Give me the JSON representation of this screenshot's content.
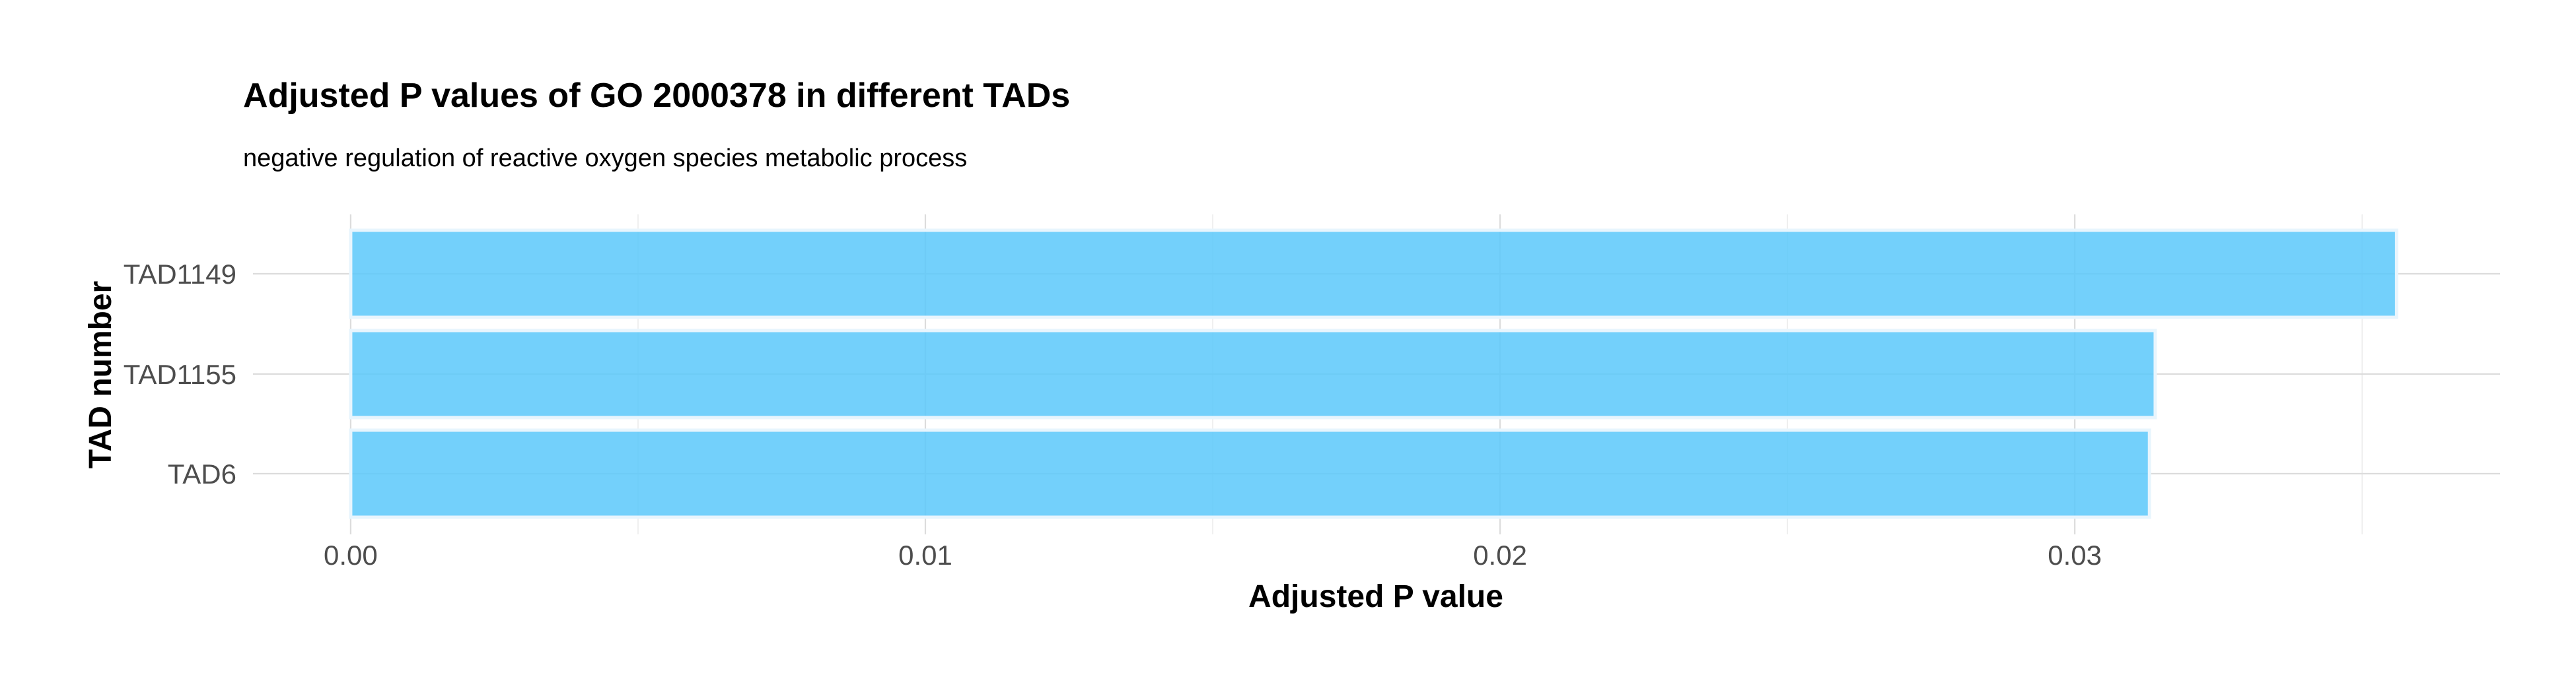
{
  "chart_data": {
    "type": "bar",
    "orientation": "horizontal",
    "title": "Adjusted P values of GO 2000378 in different TADs",
    "subtitle": "negative regulation of reactive oxygen species metabolic process",
    "xlabel": "Adjusted P value",
    "ylabel": "TAD number",
    "categories": [
      "TAD1149",
      "TAD1155",
      "TAD6"
    ],
    "values": [
      0.0356,
      0.0314,
      0.0313
    ],
    "xlim": [
      -0.0017,
      0.0374
    ],
    "xticks": [
      0.0,
      0.01,
      0.02,
      0.03
    ],
    "xtick_labels": [
      "0.00",
      "0.01",
      "0.02",
      "0.03"
    ],
    "grid": true,
    "legend": "none",
    "colors": {
      "bar_fill": "#5BC8FA",
      "bar_stroke": "#E8F5FD",
      "grid_major": "#DCDCDC",
      "grid_minor": "#ECECEC"
    }
  }
}
